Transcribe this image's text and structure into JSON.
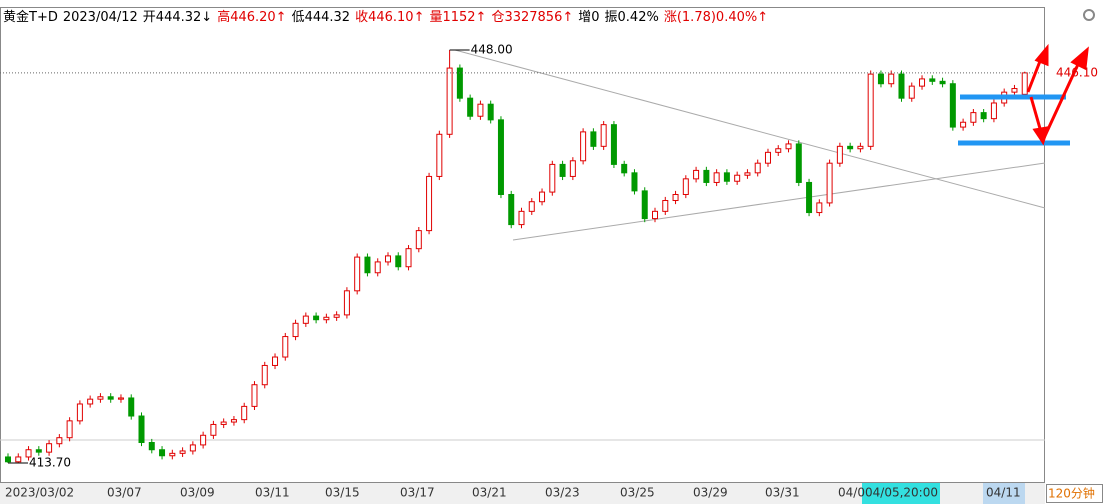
{
  "header": {
    "items": [
      {
        "text": "黄金T+D",
        "color": "#000000"
      },
      {
        "text": "2023/04/12",
        "color": "#000000"
      },
      {
        "text": "开444.32↓",
        "color": "#000000"
      },
      {
        "text": "高446.20↑",
        "color": "#e00000"
      },
      {
        "text": "低444.32",
        "color": "#000000"
      },
      {
        "text": "收446.10↑",
        "color": "#e00000"
      },
      {
        "text": "量1152↑",
        "color": "#e00000"
      },
      {
        "text": "仓3327856↑",
        "color": "#e00000"
      },
      {
        "text": "增0",
        "color": "#000000"
      },
      {
        "text": "振0.42%",
        "color": "#000000"
      },
      {
        "text": "涨(1.78)0.40%↑",
        "color": "#e00000"
      }
    ]
  },
  "chart_data": {
    "type": "candlestick",
    "up_color": "#e00000",
    "down_color": "#009900",
    "ylim": [
      412.12,
      451.49
    ],
    "period": "120分钟",
    "high_label": {
      "value": 448.0,
      "label": "448.00"
    },
    "low_label": {
      "value": 413.7,
      "label": "413.70"
    },
    "last_label": {
      "value": 446.1,
      "label": "446.10"
    },
    "x_labels": [
      "2023/03/02",
      "03/07",
      "03/09",
      "03/11",
      "03/15",
      "03/17",
      "03/21",
      "03/23",
      "03/25",
      "03/29",
      "03/31",
      "04/0",
      "04/05,20:00",
      "04/11"
    ],
    "candles": [
      [
        414.2,
        414.5,
        413.7,
        413.8
      ],
      [
        413.8,
        414.5,
        413.7,
        414.2
      ],
      [
        414.2,
        415.1,
        413.9,
        414.8
      ],
      [
        414.8,
        415.1,
        414.3,
        414.6
      ],
      [
        414.6,
        415.6,
        414.3,
        415.3
      ],
      [
        415.3,
        416.1,
        415.0,
        415.8
      ],
      [
        415.8,
        417.5,
        415.5,
        417.2
      ],
      [
        417.2,
        418.9,
        416.9,
        418.6
      ],
      [
        418.6,
        419.3,
        418.3,
        419.0
      ],
      [
        419.0,
        419.5,
        418.7,
        419.2
      ],
      [
        419.2,
        419.5,
        418.7,
        419.0
      ],
      [
        419.0,
        419.4,
        418.7,
        419.1
      ],
      [
        419.1,
        419.4,
        417.3,
        417.6
      ],
      [
        417.6,
        417.9,
        415.1,
        415.4
      ],
      [
        415.4,
        415.7,
        414.5,
        414.8
      ],
      [
        414.8,
        415.1,
        414.0,
        414.3
      ],
      [
        414.3,
        414.8,
        414.0,
        414.5
      ],
      [
        414.5,
        415.0,
        414.2,
        414.7
      ],
      [
        414.7,
        415.5,
        414.4,
        415.2
      ],
      [
        415.2,
        416.3,
        414.9,
        416.0
      ],
      [
        416.0,
        417.2,
        415.7,
        416.9
      ],
      [
        416.9,
        417.4,
        416.6,
        417.1
      ],
      [
        417.1,
        417.6,
        416.8,
        417.3
      ],
      [
        417.3,
        418.7,
        417.0,
        418.4
      ],
      [
        418.4,
        420.5,
        418.1,
        420.2
      ],
      [
        420.2,
        422.1,
        419.9,
        421.8
      ],
      [
        421.8,
        422.8,
        421.5,
        422.5
      ],
      [
        422.5,
        424.5,
        422.2,
        424.2
      ],
      [
        424.2,
        425.6,
        423.9,
        425.3
      ],
      [
        425.3,
        426.2,
        425.0,
        425.9
      ],
      [
        425.9,
        426.2,
        425.3,
        425.6
      ],
      [
        425.6,
        426.1,
        425.3,
        425.8
      ],
      [
        425.8,
        426.3,
        425.5,
        426.0
      ],
      [
        426.0,
        428.3,
        425.7,
        428.0
      ],
      [
        428.0,
        431.1,
        427.7,
        430.8
      ],
      [
        430.8,
        431.1,
        429.2,
        429.5
      ],
      [
        429.5,
        430.7,
        429.2,
        430.4
      ],
      [
        430.4,
        431.2,
        430.1,
        430.9
      ],
      [
        430.9,
        431.2,
        429.7,
        430.0
      ],
      [
        430.0,
        431.8,
        429.7,
        431.5
      ],
      [
        431.5,
        433.3,
        431.2,
        433.0
      ],
      [
        433.0,
        437.8,
        432.7,
        437.5
      ],
      [
        437.5,
        441.3,
        437.2,
        441.0
      ],
      [
        441.0,
        448.0,
        440.7,
        446.5
      ],
      [
        446.5,
        446.8,
        443.7,
        444.0
      ],
      [
        444.0,
        444.3,
        442.2,
        442.5
      ],
      [
        442.5,
        443.8,
        442.2,
        443.5
      ],
      [
        443.5,
        443.8,
        441.9,
        442.2
      ],
      [
        442.2,
        442.5,
        435.7,
        436.0
      ],
      [
        436.0,
        436.3,
        433.2,
        433.5
      ],
      [
        433.5,
        434.9,
        433.2,
        434.6
      ],
      [
        434.6,
        435.7,
        434.3,
        435.4
      ],
      [
        435.4,
        436.5,
        435.1,
        436.2
      ],
      [
        436.2,
        438.8,
        435.9,
        438.5
      ],
      [
        438.5,
        438.8,
        437.2,
        437.5
      ],
      [
        437.5,
        439.1,
        437.2,
        438.8
      ],
      [
        438.8,
        441.5,
        438.5,
        441.2
      ],
      [
        441.2,
        441.5,
        439.7,
        440.0
      ],
      [
        440.0,
        442.1,
        439.7,
        441.8
      ],
      [
        441.8,
        442.1,
        438.2,
        438.5
      ],
      [
        438.5,
        438.8,
        437.5,
        437.8
      ],
      [
        437.8,
        438.1,
        436.0,
        436.3
      ],
      [
        436.3,
        436.6,
        433.7,
        434.0
      ],
      [
        434.0,
        434.9,
        433.7,
        434.6
      ],
      [
        434.6,
        435.8,
        434.3,
        435.5
      ],
      [
        435.5,
        436.3,
        435.2,
        436.0
      ],
      [
        436.0,
        437.6,
        435.7,
        437.3
      ],
      [
        437.3,
        438.3,
        437.0,
        438.0
      ],
      [
        438.0,
        438.3,
        436.7,
        437.0
      ],
      [
        437.0,
        438.1,
        436.7,
        437.8
      ],
      [
        437.8,
        438.1,
        436.8,
        437.1
      ],
      [
        437.1,
        437.9,
        436.8,
        437.6
      ],
      [
        437.6,
        438.1,
        437.3,
        437.8
      ],
      [
        437.8,
        438.9,
        437.5,
        438.6
      ],
      [
        438.6,
        439.8,
        438.3,
        439.5
      ],
      [
        439.5,
        440.1,
        439.2,
        439.8
      ],
      [
        439.8,
        440.5,
        439.5,
        440.2
      ],
      [
        440.2,
        440.5,
        436.7,
        437.0
      ],
      [
        437.0,
        437.3,
        434.2,
        434.5
      ],
      [
        434.5,
        435.6,
        434.2,
        435.3
      ],
      [
        435.3,
        438.9,
        435.0,
        438.6
      ],
      [
        438.6,
        440.3,
        438.3,
        440.0
      ],
      [
        440.0,
        440.3,
        439.5,
        439.8
      ],
      [
        439.8,
        440.3,
        439.5,
        440.0
      ],
      [
        440.0,
        446.3,
        439.7,
        446.0
      ],
      [
        446.0,
        446.3,
        444.9,
        445.2
      ],
      [
        445.2,
        446.3,
        444.9,
        446.0
      ],
      [
        446.0,
        446.3,
        443.7,
        444.0
      ],
      [
        444.0,
        445.3,
        443.7,
        445.0
      ],
      [
        445.0,
        445.9,
        444.7,
        445.6
      ],
      [
        445.6,
        445.9,
        445.1,
        445.4
      ],
      [
        445.4,
        445.7,
        444.9,
        445.2
      ],
      [
        445.2,
        445.5,
        441.3,
        441.6
      ],
      [
        441.6,
        442.3,
        441.3,
        442.0
      ],
      [
        442.0,
        443.1,
        441.7,
        442.8
      ],
      [
        442.8,
        443.1,
        442.0,
        442.3
      ],
      [
        442.3,
        443.9,
        442.0,
        443.6
      ],
      [
        443.6,
        444.8,
        443.3,
        444.5
      ],
      [
        444.5,
        445.1,
        444.2,
        444.8
      ],
      [
        444.32,
        446.2,
        444.32,
        446.1
      ]
    ]
  }
}
